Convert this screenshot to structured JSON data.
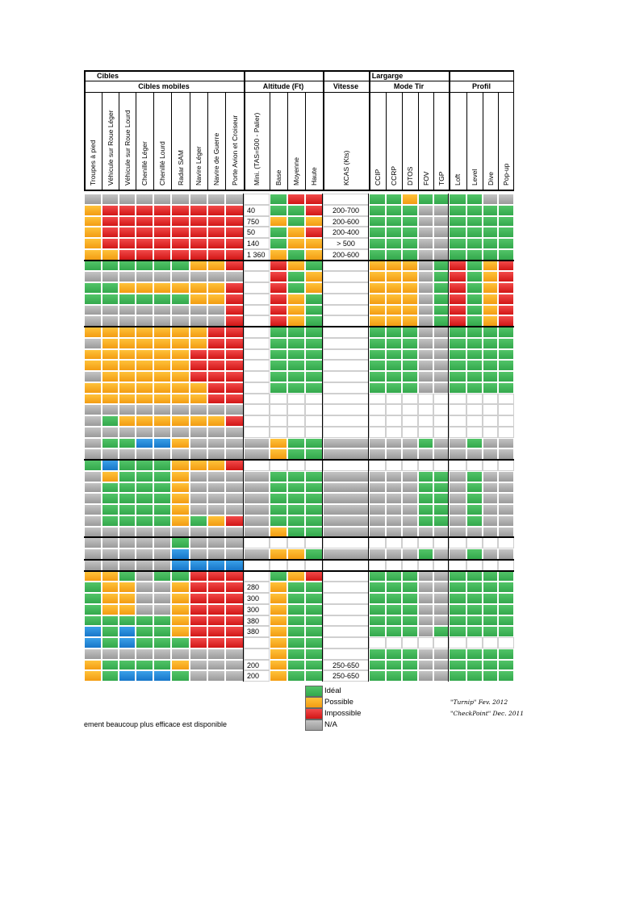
{
  "headers": {
    "cibles": "Cibles",
    "cibles_mobiles": "Cibles mobiles",
    "largarge": "Largarge",
    "altitude": "Altitude (Ft)",
    "vitesse": "Vitesse",
    "mode_tir": "Mode Tir",
    "profil": "Profil"
  },
  "columns": [
    "Troupes à pied",
    "Véhicule sur Roue Léger",
    "Véhicule sur Roue Lourd",
    "Chenillé Léger",
    "Chenillé Lourd",
    "Radar SAM",
    "Navire Léger",
    "Navire de Guerre",
    "Porte Avion et Croiseur",
    "Mini. (TAS=500 - Palier)",
    "Base",
    "Moyenne",
    "Haute",
    "KCAS (Kts)",
    "CCIP",
    "CCRP",
    "DTOS",
    "FOV",
    "TGP",
    "Loft",
    "Level",
    "Dive",
    "Pop-up"
  ],
  "rows": [
    {
      "c": "AAAAAAAAA",
      "mini": "",
      "alt": "GRR",
      "kcas": "",
      "mode": "GGOGG",
      "prof": "GGAA"
    },
    {
      "c": "ORRRRRRRR",
      "mini": "40",
      "alt": "GGR",
      "kcas": "200-700",
      "mode": "GGGAA",
      "prof": "GGGG"
    },
    {
      "c": "ORRRRRRRR",
      "mini": "750",
      "alt": "OGO",
      "kcas": "200-600",
      "mode": "GGGAA",
      "prof": "GGGG"
    },
    {
      "c": "ORRRRRRRR",
      "mini": "50",
      "alt": "GOR",
      "kcas": "200-400",
      "mode": "GGGAA",
      "prof": "GGGG"
    },
    {
      "c": "ORRRRRRRR",
      "mini": "140",
      "alt": "GOO",
      "kcas": "> 500",
      "mode": "GGGAA",
      "prof": "GGGG"
    },
    {
      "c": "OORRRRRRR",
      "mini": "1 360",
      "alt": "OGO",
      "kcas": "200-600",
      "mode": "GGGAA",
      "prof": "GGGG"
    },
    {
      "c": "GGGGGGOOR",
      "mini": "",
      "alt": "ROG",
      "kcas": "",
      "mode": "OOOAG",
      "prof": "RGOR"
    },
    {
      "c": "AAAAAAAAA",
      "mini": "",
      "alt": "RGO",
      "kcas": "",
      "mode": "OOOAG",
      "prof": "RGOR"
    },
    {
      "c": "GGOOOOOOR",
      "mini": "",
      "alt": "RGO",
      "kcas": "",
      "mode": "OOOAG",
      "prof": "RGOR"
    },
    {
      "c": "GGGGGGOOR",
      "mini": "",
      "alt": "ROG",
      "kcas": "",
      "mode": "OOOAG",
      "prof": "RGOR"
    },
    {
      "c": "AAAAAAAAR",
      "mini": "",
      "alt": "ROG",
      "kcas": "",
      "mode": "OOOAG",
      "prof": "RGOR"
    },
    {
      "c": "AAAAAAAAR",
      "mini": "",
      "alt": "ROG",
      "kcas": "",
      "mode": "OOOAG",
      "prof": "RGOR"
    },
    {
      "c": "OOOOOOORR",
      "mini": "",
      "alt": "GGG",
      "kcas": "",
      "mode": "GGGAA",
      "prof": "GGGG"
    },
    {
      "c": "AOOOOOORR",
      "mini": "",
      "alt": "GGG",
      "kcas": "",
      "mode": "GGGAA",
      "prof": "GGGG"
    },
    {
      "c": "OOOOOORRR",
      "mini": "",
      "alt": "GGG",
      "kcas": "",
      "mode": "GGGAA",
      "prof": "GGGG"
    },
    {
      "c": "OOOOOORRR",
      "mini": "",
      "alt": "GGG",
      "kcas": "",
      "mode": "GGGAA",
      "prof": "GGGG"
    },
    {
      "c": "AOOOOORRR",
      "mini": "",
      "alt": "GGG",
      "kcas": "",
      "mode": "GGGAA",
      "prof": "GGGG"
    },
    {
      "c": "OOOOOOORR",
      "mini": "",
      "alt": "GGG",
      "kcas": "",
      "mode": "GGGAA",
      "prof": "GGGG"
    },
    {
      "c": "OOOOOOORR",
      "mini": "",
      "alt": "WWW",
      "kcas": "",
      "mode": "WWWWW",
      "prof": "WWWW"
    },
    {
      "c": "AAAAAAAAA",
      "mini": "",
      "alt": "WWW",
      "kcas": "",
      "mode": "WWWWW",
      "prof": "WWWW"
    },
    {
      "c": "AGOOOOOOR",
      "mini": "",
      "alt": "WWW",
      "kcas": "",
      "mode": "WWWWW",
      "prof": "WWWW"
    },
    {
      "c": "AAAAAAAAA",
      "mini": "",
      "alt": "WWW",
      "kcas": "",
      "mode": "WWWWW",
      "prof": "WWWW"
    },
    {
      "c": "AGGBBOAAA",
      "mini": "A",
      "alt": "OGG",
      "kcas": "A",
      "mode": "AAAGA",
      "prof": "AGAA"
    },
    {
      "c": "AAAAAAAAA",
      "mini": "A",
      "alt": "OGG",
      "kcas": "A",
      "mode": "AAAAA",
      "prof": "AAAA"
    },
    {
      "c": "GBGGGOOOR",
      "mini": "",
      "alt": "WWW",
      "kcas": "",
      "mode": "WWWWW",
      "prof": "WWWW"
    },
    {
      "c": "AOGGGOAAA",
      "mini": "A",
      "alt": "GGG",
      "kcas": "A",
      "mode": "AAAGG",
      "prof": "AGAA"
    },
    {
      "c": "AGGGGOAAA",
      "mini": "A",
      "alt": "GGG",
      "kcas": "A",
      "mode": "AAAGG",
      "prof": "AGAA"
    },
    {
      "c": "AGGGGOAAA",
      "mini": "A",
      "alt": "GGG",
      "kcas": "A",
      "mode": "AAAGG",
      "prof": "AGAA"
    },
    {
      "c": "AGGGGOAAA",
      "mini": "A",
      "alt": "GGG",
      "kcas": "A",
      "mode": "AAAGG",
      "prof": "AGAA"
    },
    {
      "c": "AGGGGOGOR",
      "mini": "A",
      "alt": "GGG",
      "kcas": "A",
      "mode": "AAAGG",
      "prof": "AGAA"
    },
    {
      "c": "AAAAAAAAA",
      "mini": "A",
      "alt": "OGG",
      "kcas": "A",
      "mode": "AAAAA",
      "prof": "AAAA"
    },
    {
      "c": "AAAAAGAAA",
      "mini": "",
      "alt": "WWW",
      "kcas": "",
      "mode": "WWWWW",
      "prof": "WWWW"
    },
    {
      "c": "AAAAABAAA",
      "mini": "A",
      "alt": "OOG",
      "kcas": "A",
      "mode": "AAAGA",
      "prof": "AGAA"
    },
    {
      "c": "AAAAABBBB",
      "mini": "",
      "alt": "WWW",
      "kcas": "",
      "mode": "WWWWW",
      "prof": "WWWW"
    },
    {
      "c": "OOGAGGRRR",
      "mini": "",
      "alt": "GOR",
      "kcas": "",
      "mode": "GGGAA",
      "prof": "GGGG"
    },
    {
      "c": "GOOAAORRR",
      "mini": "280",
      "alt": "OGG",
      "kcas": "",
      "mode": "GGGAA",
      "prof": "GGGG"
    },
    {
      "c": "GOOAAORRR",
      "mini": "300",
      "alt": "OGG",
      "kcas": "",
      "mode": "GGGAA",
      "prof": "GGGG"
    },
    {
      "c": "GOOAAORRR",
      "mini": "300",
      "alt": "OGG",
      "kcas": "",
      "mode": "GGGAA",
      "prof": "GGGG"
    },
    {
      "c": "GGGGGORRR",
      "mini": "380",
      "alt": "OGG",
      "kcas": "",
      "mode": "GGGAA",
      "prof": "GGGG"
    },
    {
      "c": "BGBGGORRR",
      "mini": "380",
      "alt": "OGG",
      "kcas": "",
      "mode": "GGGAG",
      "prof": "GGGG"
    },
    {
      "c": "BGBGGGRRR",
      "mini": "",
      "alt": "OGG",
      "kcas": "",
      "mode": "WWWWW",
      "prof": "WWWW"
    },
    {
      "c": "AAAAAAAAA",
      "mini": "",
      "alt": "OGG",
      "kcas": "",
      "mode": "GGGAA",
      "prof": "GGGG"
    },
    {
      "c": "OGGGGOAAA",
      "mini": "200",
      "alt": "OGG",
      "kcas": "250-650",
      "mode": "GGGAA",
      "prof": "GGGG"
    },
    {
      "c": "OGBBBGAAA",
      "mini": "200",
      "alt": "OGG",
      "kcas": "250-650",
      "mode": "GGGAA",
      "prof": "GGGG"
    }
  ],
  "legend": [
    {
      "label": "Idéal",
      "color": "G"
    },
    {
      "label": "Possible",
      "color": "O"
    },
    {
      "label": "Impossible",
      "color": "R"
    },
    {
      "label": "N/A",
      "color": "A"
    }
  ],
  "credits": [
    "\"Turnip\" Fev. 2012",
    "\"CheckPoint\" Dec. 2011"
  ],
  "footnote": "ement beaucoup plus efficace est disponible"
}
